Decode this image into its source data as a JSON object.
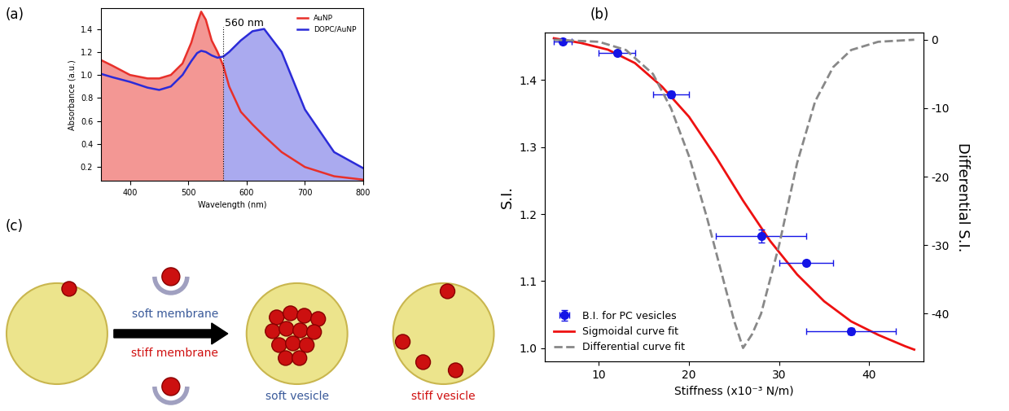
{
  "chart_data": [
    {
      "type": "line",
      "title": "(a)",
      "x_label": "Wavelength (nm)",
      "y_label": "Absorbance (a.u.)",
      "x": [
        350,
        370,
        400,
        430,
        450,
        470,
        490,
        505,
        515,
        522,
        530,
        540,
        550,
        560,
        570,
        590,
        610,
        630,
        660,
        700,
        750,
        800
      ],
      "series": [
        {
          "name": "AuNP",
          "color": "#e8302a",
          "values": [
            1.13,
            1.08,
            1.0,
            0.97,
            0.97,
            1.0,
            1.1,
            1.28,
            1.45,
            1.55,
            1.48,
            1.3,
            1.2,
            1.08,
            0.9,
            0.68,
            0.57,
            0.47,
            0.33,
            0.2,
            0.12,
            0.09
          ]
        },
        {
          "name": "DOPC/AuNP",
          "color": "#2b2bd8",
          "values": [
            1.01,
            0.98,
            0.94,
            0.89,
            0.87,
            0.9,
            1.0,
            1.12,
            1.19,
            1.21,
            1.2,
            1.17,
            1.15,
            1.16,
            1.2,
            1.3,
            1.38,
            1.4,
            1.2,
            0.7,
            0.33,
            0.19
          ]
        }
      ],
      "annotations": [
        {
          "text": "560 nm",
          "x": 560
        }
      ],
      "xlim": [
        350,
        800
      ],
      "xticks": [
        400,
        500,
        600,
        700,
        800
      ],
      "ylim": [
        0.08,
        1.58
      ],
      "yticks": [
        0.2,
        0.4,
        0.6,
        0.8,
        1.0,
        1.2,
        1.4
      ],
      "legend": "upper right"
    },
    {
      "type": "scatter",
      "title": "(b)",
      "x_label": "Stiffness (x10⁻³ N/m)",
      "y_label": "S.I.",
      "y2_label": "Differential S.I.",
      "series": [
        {
          "name": "B.I. for PC vesicles",
          "type": "scatter",
          "color": "#1414e6",
          "marker": "o",
          "x": [
            6,
            12,
            18,
            28,
            33,
            38
          ],
          "values": [
            1.457,
            1.44,
            1.378,
            1.167,
            1.127,
            1.025
          ],
          "xerr": [
            1,
            2,
            2,
            5,
            3,
            5
          ],
          "yerr": [
            0.004,
            0.004,
            0.005,
            0.01,
            0.004,
            0.005
          ]
        },
        {
          "name": "Sigmoidal curve fit",
          "type": "line",
          "color": "#ee1111",
          "line_style": "solid",
          "x": [
            5,
            8,
            11,
            14,
            17,
            20,
            23,
            26,
            29,
            32,
            35,
            38,
            41,
            44,
            45
          ],
          "values": [
            1.462,
            1.455,
            1.445,
            1.425,
            1.39,
            1.345,
            1.285,
            1.22,
            1.16,
            1.11,
            1.07,
            1.04,
            1.02,
            1.003,
            0.998
          ]
        },
        {
          "name": "Differential curve fit",
          "type": "line",
          "color": "#888888",
          "line_style": "dashed",
          "axis": "y2",
          "x": [
            5,
            10,
            13,
            16,
            18,
            20,
            22,
            24,
            25,
            26,
            27,
            28,
            30,
            32,
            34,
            36,
            38,
            41,
            45
          ],
          "values": [
            0,
            -0.3,
            -1.5,
            -5,
            -10,
            -17,
            -26,
            -36,
            -41,
            -45,
            -43,
            -40,
            -30,
            -18,
            -9,
            -4,
            -1.5,
            -0.3,
            0
          ]
        }
      ],
      "xlim": [
        4,
        46
      ],
      "xticks": [
        10,
        20,
        30,
        40
      ],
      "ylim": [
        0.98,
        1.47
      ],
      "yticks": [
        1.0,
        1.1,
        1.2,
        1.3,
        1.4
      ],
      "y2lim": [
        -47,
        1
      ],
      "y2ticks": [
        -40,
        -30,
        -20,
        -10,
        0
      ],
      "legend": "lower left"
    }
  ],
  "diagram": {
    "title": "(c)",
    "arrow_labels": [
      "soft membrane",
      "stiff membrane"
    ],
    "vesicle_labels": [
      "soft vesicle",
      "stiff vesicle"
    ]
  }
}
